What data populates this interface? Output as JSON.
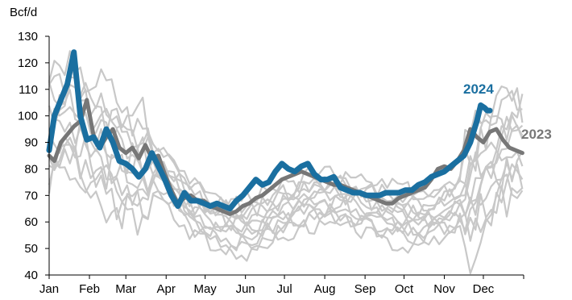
{
  "chart_data": {
    "type": "line",
    "ylabel": "Bcf/d",
    "ylim": [
      40,
      130
    ],
    "yticks": [
      40,
      50,
      60,
      70,
      80,
      90,
      100,
      110,
      120,
      130
    ],
    "xlim": [
      1,
      366
    ],
    "month_labels": [
      "Jan",
      "Feb",
      "Mar",
      "Apr",
      "May",
      "Jun",
      "Jul",
      "Aug",
      "Sep",
      "Oct",
      "Nov",
      "Dec"
    ],
    "month_starts": [
      1,
      32,
      60,
      91,
      121,
      152,
      182,
      213,
      244,
      274,
      305,
      335
    ],
    "grid": false,
    "legend": "inline-labels",
    "colors": {
      "y2024": "#1a6fa0",
      "y2023": "#777777",
      "history": "#c8c8c8"
    },
    "series": [
      {
        "name": "2024",
        "x": [
          1,
          5,
          10,
          15,
          20,
          25,
          30,
          35,
          40,
          45,
          50,
          55,
          60,
          65,
          70,
          75,
          80,
          85,
          90,
          95,
          100,
          105,
          110,
          115,
          120,
          125,
          130,
          135,
          140,
          145,
          150,
          155,
          160,
          165,
          170,
          175,
          180,
          185,
          190,
          195,
          200,
          205,
          210,
          215,
          220,
          225,
          230,
          235,
          240,
          245,
          250,
          255,
          260,
          265,
          270,
          275,
          280,
          285,
          290,
          295,
          300,
          305,
          310,
          315,
          320,
          325,
          330,
          333,
          336,
          338,
          340
        ],
        "values": [
          87,
          100,
          106,
          112,
          124,
          100,
          91,
          92,
          88,
          95,
          90,
          83,
          82,
          80,
          77,
          80,
          86,
          81,
          76,
          70,
          66,
          71,
          68,
          68,
          67,
          66,
          67,
          66,
          65,
          68,
          70,
          73,
          76,
          74,
          75,
          79,
          82,
          80,
          79,
          81,
          82,
          78,
          76,
          76,
          77,
          73,
          72,
          71,
          71,
          70,
          70,
          70,
          71,
          71,
          71,
          72,
          72,
          74,
          75,
          77,
          78,
          79,
          81,
          83,
          85,
          90,
          98,
          104,
          103,
          102,
          102
        ]
      },
      {
        "name": "2023",
        "x": [
          1,
          5,
          10,
          15,
          20,
          25,
          30,
          35,
          40,
          45,
          50,
          55,
          60,
          65,
          70,
          75,
          80,
          85,
          90,
          95,
          100,
          105,
          110,
          115,
          120,
          125,
          130,
          135,
          140,
          145,
          150,
          155,
          160,
          165,
          170,
          175,
          180,
          185,
          190,
          195,
          200,
          205,
          210,
          215,
          220,
          225,
          230,
          235,
          240,
          245,
          250,
          255,
          260,
          265,
          270,
          275,
          280,
          285,
          290,
          295,
          300,
          305,
          310,
          315,
          320,
          325,
          330,
          335,
          340,
          345,
          350,
          355,
          360,
          365
        ],
        "values": [
          85,
          83,
          90,
          93,
          96,
          98,
          106,
          93,
          88,
          92,
          95,
          88,
          86,
          88,
          84,
          89,
          84,
          85,
          78,
          72,
          67,
          69,
          70,
          68,
          68,
          66,
          65,
          64,
          63,
          64,
          66,
          67,
          69,
          70,
          72,
          74,
          76,
          77,
          78,
          79,
          78,
          77,
          76,
          75,
          74,
          74,
          73,
          72,
          71,
          70,
          69,
          68,
          67,
          67,
          69,
          70,
          71,
          72,
          73,
          76,
          80,
          81,
          80,
          83,
          87,
          95,
          92,
          90,
          94,
          95,
          91,
          88,
          87,
          86
        ]
      }
    ],
    "history_lines_count": 12,
    "annotations": [
      "2024",
      "2023"
    ]
  }
}
